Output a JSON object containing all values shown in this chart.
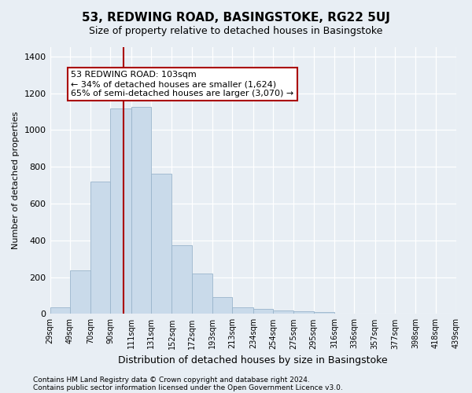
{
  "title": "53, REDWING ROAD, BASINGSTOKE, RG22 5UJ",
  "subtitle": "Size of property relative to detached houses in Basingstoke",
  "xlabel": "Distribution of detached houses by size in Basingstoke",
  "ylabel": "Number of detached properties",
  "footnote1": "Contains HM Land Registry data © Crown copyright and database right 2024.",
  "footnote2": "Contains public sector information licensed under the Open Government Licence v3.0.",
  "annotation_title": "53 REDWING ROAD: 103sqm",
  "annotation_line1": "← 34% of detached houses are smaller (1,624)",
  "annotation_line2": "65% of semi-detached houses are larger (3,070) →",
  "property_size": 103,
  "bar_edges": [
    29,
    49,
    70,
    90,
    111,
    131,
    152,
    172,
    193,
    213,
    234,
    254,
    275,
    295,
    316,
    336,
    357,
    377,
    398,
    418,
    439
  ],
  "bar_values": [
    35,
    235,
    720,
    1115,
    1125,
    760,
    375,
    220,
    90,
    35,
    25,
    20,
    15,
    10,
    0,
    0,
    0,
    0,
    0,
    0
  ],
  "bar_color": "#c9daea",
  "bar_edge_color": "#9ab5cc",
  "line_color": "#aa0000",
  "background_color": "#e8eef4",
  "annotation_box_color": "#ffffff",
  "annotation_border_color": "#aa0000",
  "ylim": [
    0,
    1450
  ],
  "yticks": [
    0,
    200,
    400,
    600,
    800,
    1000,
    1200,
    1400
  ]
}
